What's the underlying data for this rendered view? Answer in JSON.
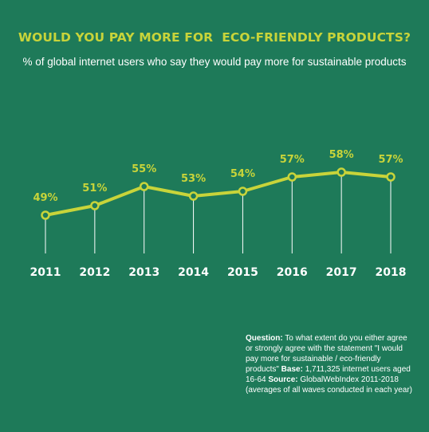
{
  "chart_data": {
    "type": "line",
    "title": "WOULD YOU PAY MORE FOR  ECO-FRIENDLY PRODUCTS?",
    "subtitle": "% of global internet users who say they would pay more for sustainable products",
    "categories": [
      "2011",
      "2012",
      "2013",
      "2014",
      "2015",
      "2016",
      "2017",
      "2018"
    ],
    "values": [
      49,
      51,
      55,
      53,
      54,
      57,
      58,
      57
    ],
    "data_labels": [
      "49%",
      "51%",
      "55%",
      "53%",
      "54%",
      "57%",
      "58%",
      "57%"
    ],
    "xlabel": "",
    "ylabel": "",
    "grid": false,
    "legend": "none",
    "colors": {
      "background": "#1e7a59",
      "line": "#c8d43a",
      "label": "#c8d43a",
      "stem": "#ffffff",
      "tick_label": "#ffffff"
    }
  },
  "footnote": {
    "question_label": "Question:",
    "question_text": " To what extent do you either agree or strongly agree with the statement \"I would pay more for sustainable / eco-friendly products\"",
    "base_label": " Base:",
    "base_text": " 1,711,325 internet users aged 16-64",
    "source_label": " Source:",
    "source_text": " GlobalWebIndex 2011-2018 (averages of all waves conducted in each year)"
  }
}
